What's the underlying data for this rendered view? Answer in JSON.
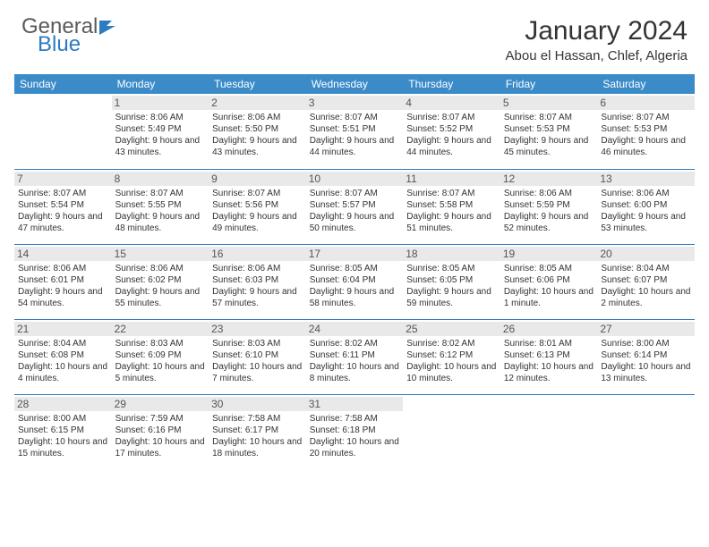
{
  "brand": {
    "name": "General",
    "sub": "Blue"
  },
  "title": "January 2024",
  "location": "Abou el Hassan, Chlef, Algeria",
  "colors": {
    "header_bg": "#3b8bc9",
    "header_text": "#ffffff",
    "border": "#2d7bc0",
    "daynum_bg": "#e9e9e9",
    "text": "#333333",
    "logo_gray": "#5a5a5a",
    "logo_blue": "#2d7bc0"
  },
  "weekdays": [
    "Sunday",
    "Monday",
    "Tuesday",
    "Wednesday",
    "Thursday",
    "Friday",
    "Saturday"
  ],
  "weeks": [
    [
      null,
      {
        "day": 1,
        "sunrise": "8:06 AM",
        "sunset": "5:49 PM",
        "daylight": "9 hours and 43 minutes."
      },
      {
        "day": 2,
        "sunrise": "8:06 AM",
        "sunset": "5:50 PM",
        "daylight": "9 hours and 43 minutes."
      },
      {
        "day": 3,
        "sunrise": "8:07 AM",
        "sunset": "5:51 PM",
        "daylight": "9 hours and 44 minutes."
      },
      {
        "day": 4,
        "sunrise": "8:07 AM",
        "sunset": "5:52 PM",
        "daylight": "9 hours and 44 minutes."
      },
      {
        "day": 5,
        "sunrise": "8:07 AM",
        "sunset": "5:53 PM",
        "daylight": "9 hours and 45 minutes."
      },
      {
        "day": 6,
        "sunrise": "8:07 AM",
        "sunset": "5:53 PM",
        "daylight": "9 hours and 46 minutes."
      }
    ],
    [
      {
        "day": 7,
        "sunrise": "8:07 AM",
        "sunset": "5:54 PM",
        "daylight": "9 hours and 47 minutes."
      },
      {
        "day": 8,
        "sunrise": "8:07 AM",
        "sunset": "5:55 PM",
        "daylight": "9 hours and 48 minutes."
      },
      {
        "day": 9,
        "sunrise": "8:07 AM",
        "sunset": "5:56 PM",
        "daylight": "9 hours and 49 minutes."
      },
      {
        "day": 10,
        "sunrise": "8:07 AM",
        "sunset": "5:57 PM",
        "daylight": "9 hours and 50 minutes."
      },
      {
        "day": 11,
        "sunrise": "8:07 AM",
        "sunset": "5:58 PM",
        "daylight": "9 hours and 51 minutes."
      },
      {
        "day": 12,
        "sunrise": "8:06 AM",
        "sunset": "5:59 PM",
        "daylight": "9 hours and 52 minutes."
      },
      {
        "day": 13,
        "sunrise": "8:06 AM",
        "sunset": "6:00 PM",
        "daylight": "9 hours and 53 minutes."
      }
    ],
    [
      {
        "day": 14,
        "sunrise": "8:06 AM",
        "sunset": "6:01 PM",
        "daylight": "9 hours and 54 minutes."
      },
      {
        "day": 15,
        "sunrise": "8:06 AM",
        "sunset": "6:02 PM",
        "daylight": "9 hours and 55 minutes."
      },
      {
        "day": 16,
        "sunrise": "8:06 AM",
        "sunset": "6:03 PM",
        "daylight": "9 hours and 57 minutes."
      },
      {
        "day": 17,
        "sunrise": "8:05 AM",
        "sunset": "6:04 PM",
        "daylight": "9 hours and 58 minutes."
      },
      {
        "day": 18,
        "sunrise": "8:05 AM",
        "sunset": "6:05 PM",
        "daylight": "9 hours and 59 minutes."
      },
      {
        "day": 19,
        "sunrise": "8:05 AM",
        "sunset": "6:06 PM",
        "daylight": "10 hours and 1 minute."
      },
      {
        "day": 20,
        "sunrise": "8:04 AM",
        "sunset": "6:07 PM",
        "daylight": "10 hours and 2 minutes."
      }
    ],
    [
      {
        "day": 21,
        "sunrise": "8:04 AM",
        "sunset": "6:08 PM",
        "daylight": "10 hours and 4 minutes."
      },
      {
        "day": 22,
        "sunrise": "8:03 AM",
        "sunset": "6:09 PM",
        "daylight": "10 hours and 5 minutes."
      },
      {
        "day": 23,
        "sunrise": "8:03 AM",
        "sunset": "6:10 PM",
        "daylight": "10 hours and 7 minutes."
      },
      {
        "day": 24,
        "sunrise": "8:02 AM",
        "sunset": "6:11 PM",
        "daylight": "10 hours and 8 minutes."
      },
      {
        "day": 25,
        "sunrise": "8:02 AM",
        "sunset": "6:12 PM",
        "daylight": "10 hours and 10 minutes."
      },
      {
        "day": 26,
        "sunrise": "8:01 AM",
        "sunset": "6:13 PM",
        "daylight": "10 hours and 12 minutes."
      },
      {
        "day": 27,
        "sunrise": "8:00 AM",
        "sunset": "6:14 PM",
        "daylight": "10 hours and 13 minutes."
      }
    ],
    [
      {
        "day": 28,
        "sunrise": "8:00 AM",
        "sunset": "6:15 PM",
        "daylight": "10 hours and 15 minutes."
      },
      {
        "day": 29,
        "sunrise": "7:59 AM",
        "sunset": "6:16 PM",
        "daylight": "10 hours and 17 minutes."
      },
      {
        "day": 30,
        "sunrise": "7:58 AM",
        "sunset": "6:17 PM",
        "daylight": "10 hours and 18 minutes."
      },
      {
        "day": 31,
        "sunrise": "7:58 AM",
        "sunset": "6:18 PM",
        "daylight": "10 hours and 20 minutes."
      },
      null,
      null,
      null
    ]
  ]
}
